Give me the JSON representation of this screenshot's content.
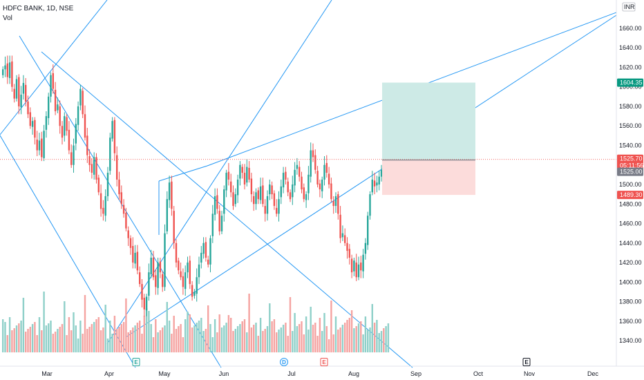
{
  "header": {
    "title": "HDFC BANK, 1D, NSE",
    "vol_label": "Vol"
  },
  "currency_label": "INR",
  "chart_data": {
    "type": "candlestick",
    "symbol": "HDFC BANK",
    "interval": "1D",
    "exchange": "NSE",
    "y_ticks": [
      1340,
      1360,
      1380,
      1400,
      1420,
      1440,
      1460,
      1480,
      1500,
      1520,
      1540,
      1560,
      1580,
      1600,
      1620,
      1640,
      1660
    ],
    "ylim": [
      1328,
      1672
    ],
    "x_ticks": [
      "Mar",
      "Apr",
      "May",
      "Jun",
      "Jul",
      "Aug",
      "Sep",
      "Oct",
      "Nov",
      "Dec"
    ],
    "closes": [
      1618,
      1622,
      1610,
      1625,
      1600,
      1588,
      1608,
      1580,
      1592,
      1604,
      1585,
      1572,
      1560,
      1565,
      1548,
      1535,
      1545,
      1528,
      1555,
      1570,
      1590,
      1612,
      1598,
      1575,
      1582,
      1560,
      1548,
      1570,
      1555,
      1535,
      1520,
      1540,
      1562,
      1580,
      1598,
      1572,
      1548,
      1530,
      1520,
      1512,
      1528,
      1505,
      1492,
      1475,
      1470,
      1488,
      1512,
      1548,
      1565,
      1532,
      1505,
      1490,
      1480,
      1470,
      1455,
      1445,
      1435,
      1420,
      1430,
      1412,
      1398,
      1382,
      1372,
      1385,
      1410,
      1425,
      1405,
      1395,
      1420,
      1410,
      1395,
      1450,
      1485,
      1502,
      1475,
      1440,
      1420,
      1412,
      1405,
      1395,
      1410,
      1420,
      1398,
      1385,
      1390,
      1405,
      1418,
      1430,
      1440,
      1425,
      1418,
      1445,
      1470,
      1488,
      1475,
      1452,
      1468,
      1495,
      1512,
      1505,
      1492,
      1478,
      1490,
      1505,
      1520,
      1512,
      1500,
      1518,
      1505,
      1490,
      1480,
      1492,
      1485,
      1498,
      1480,
      1470,
      1488,
      1500,
      1490,
      1478,
      1470,
      1485,
      1498,
      1512,
      1505,
      1492,
      1485,
      1500,
      1515,
      1520,
      1508,
      1495,
      1485,
      1490,
      1510,
      1535,
      1528,
      1515,
      1500,
      1495,
      1505,
      1520,
      1512,
      1500,
      1485,
      1478,
      1488,
      1470,
      1445,
      1450,
      1440,
      1432,
      1425,
      1410,
      1422,
      1405,
      1418,
      1412,
      1428,
      1440,
      1468,
      1490,
      1505,
      1498,
      1502,
      1508,
      1515,
      1512,
      1520,
      1525.7
    ],
    "price_labels": {
      "last": "1525.70",
      "countdown": "05:11:56",
      "entry": "1525.00",
      "target": "1604.35",
      "stop": "1489.30"
    },
    "events": [
      "E",
      "D",
      "E",
      "E"
    ],
    "colors": {
      "up": "#26a69a",
      "down": "#ef5350",
      "up_vol": "#8fd0c9",
      "down_vol": "#f5a3a1",
      "trend": "#2196f3",
      "profit": "#cdeae6",
      "loss": "#fcdcdb"
    },
    "grid": false
  }
}
